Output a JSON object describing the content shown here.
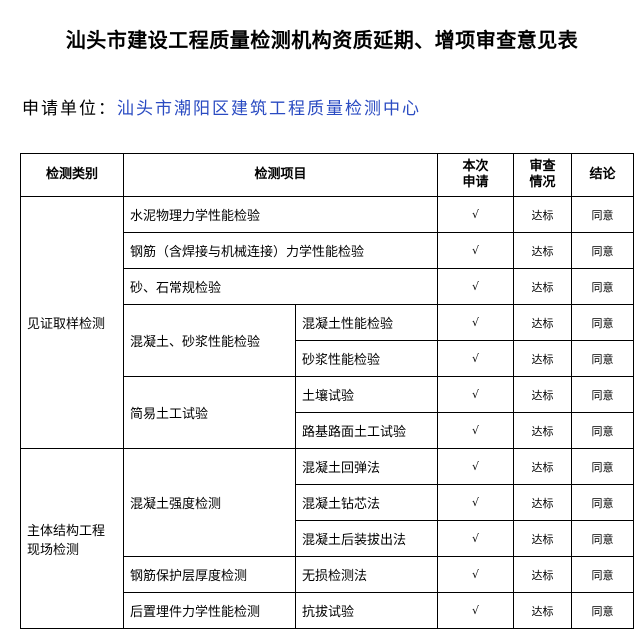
{
  "title": "汕头市建设工程质量检测机构资质延期、增项审查意见表",
  "applicant": {
    "label": "申请单位：",
    "value": "汕头市潮阳区建筑工程质量检测中心",
    "value_color": "#2a4bc2"
  },
  "headers": {
    "category": "检测类别",
    "item": "检测项目",
    "apply": "本次申请",
    "review": "审查情况",
    "conclusion": "结论"
  },
  "groups": {
    "g1": "见证取样检测",
    "g2": "主体结构工程现场检测"
  },
  "subgroups": {
    "s1": "混凝土、砂浆性能检验",
    "s2": "简易土工试验",
    "s3": "混凝土强度检测",
    "s4": "钢筋保护层厚度检测",
    "s5": "后置埋件力学性能检测"
  },
  "items": [
    "水泥物理力学性能检验",
    "钢筋（含焊接与机械连接）力学性能检验",
    "砂、石常规检验",
    "混凝土性能检验",
    "砂浆性能检验",
    "土壤试验",
    "路基路面土工试验",
    "混凝土回弹法",
    "混凝土钻芯法",
    "混凝土后装拔出法",
    "无损检测法",
    "抗拔试验"
  ],
  "marks": {
    "apply": "√",
    "review": "达标",
    "conclusion": "同意"
  }
}
